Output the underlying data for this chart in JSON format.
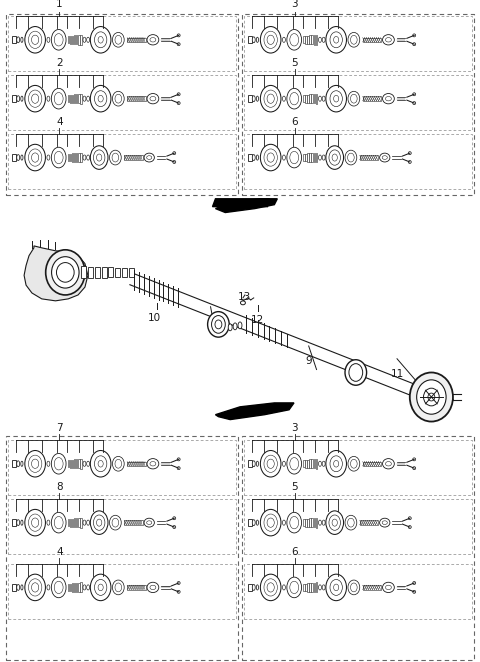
{
  "background_color": "#ffffff",
  "line_color": "#1a1a1a",
  "fig_width": 4.8,
  "fig_height": 6.62,
  "dpi": 100,
  "top_left_labels": [
    "1",
    "2",
    "4"
  ],
  "top_right_labels": [
    "3",
    "5",
    "6"
  ],
  "bottom_left_labels": [
    "7",
    "8",
    "4"
  ],
  "bottom_right_labels": [
    "3",
    "5",
    "6"
  ],
  "center_labels": [
    "9",
    "10",
    "11",
    "12",
    "13"
  ]
}
